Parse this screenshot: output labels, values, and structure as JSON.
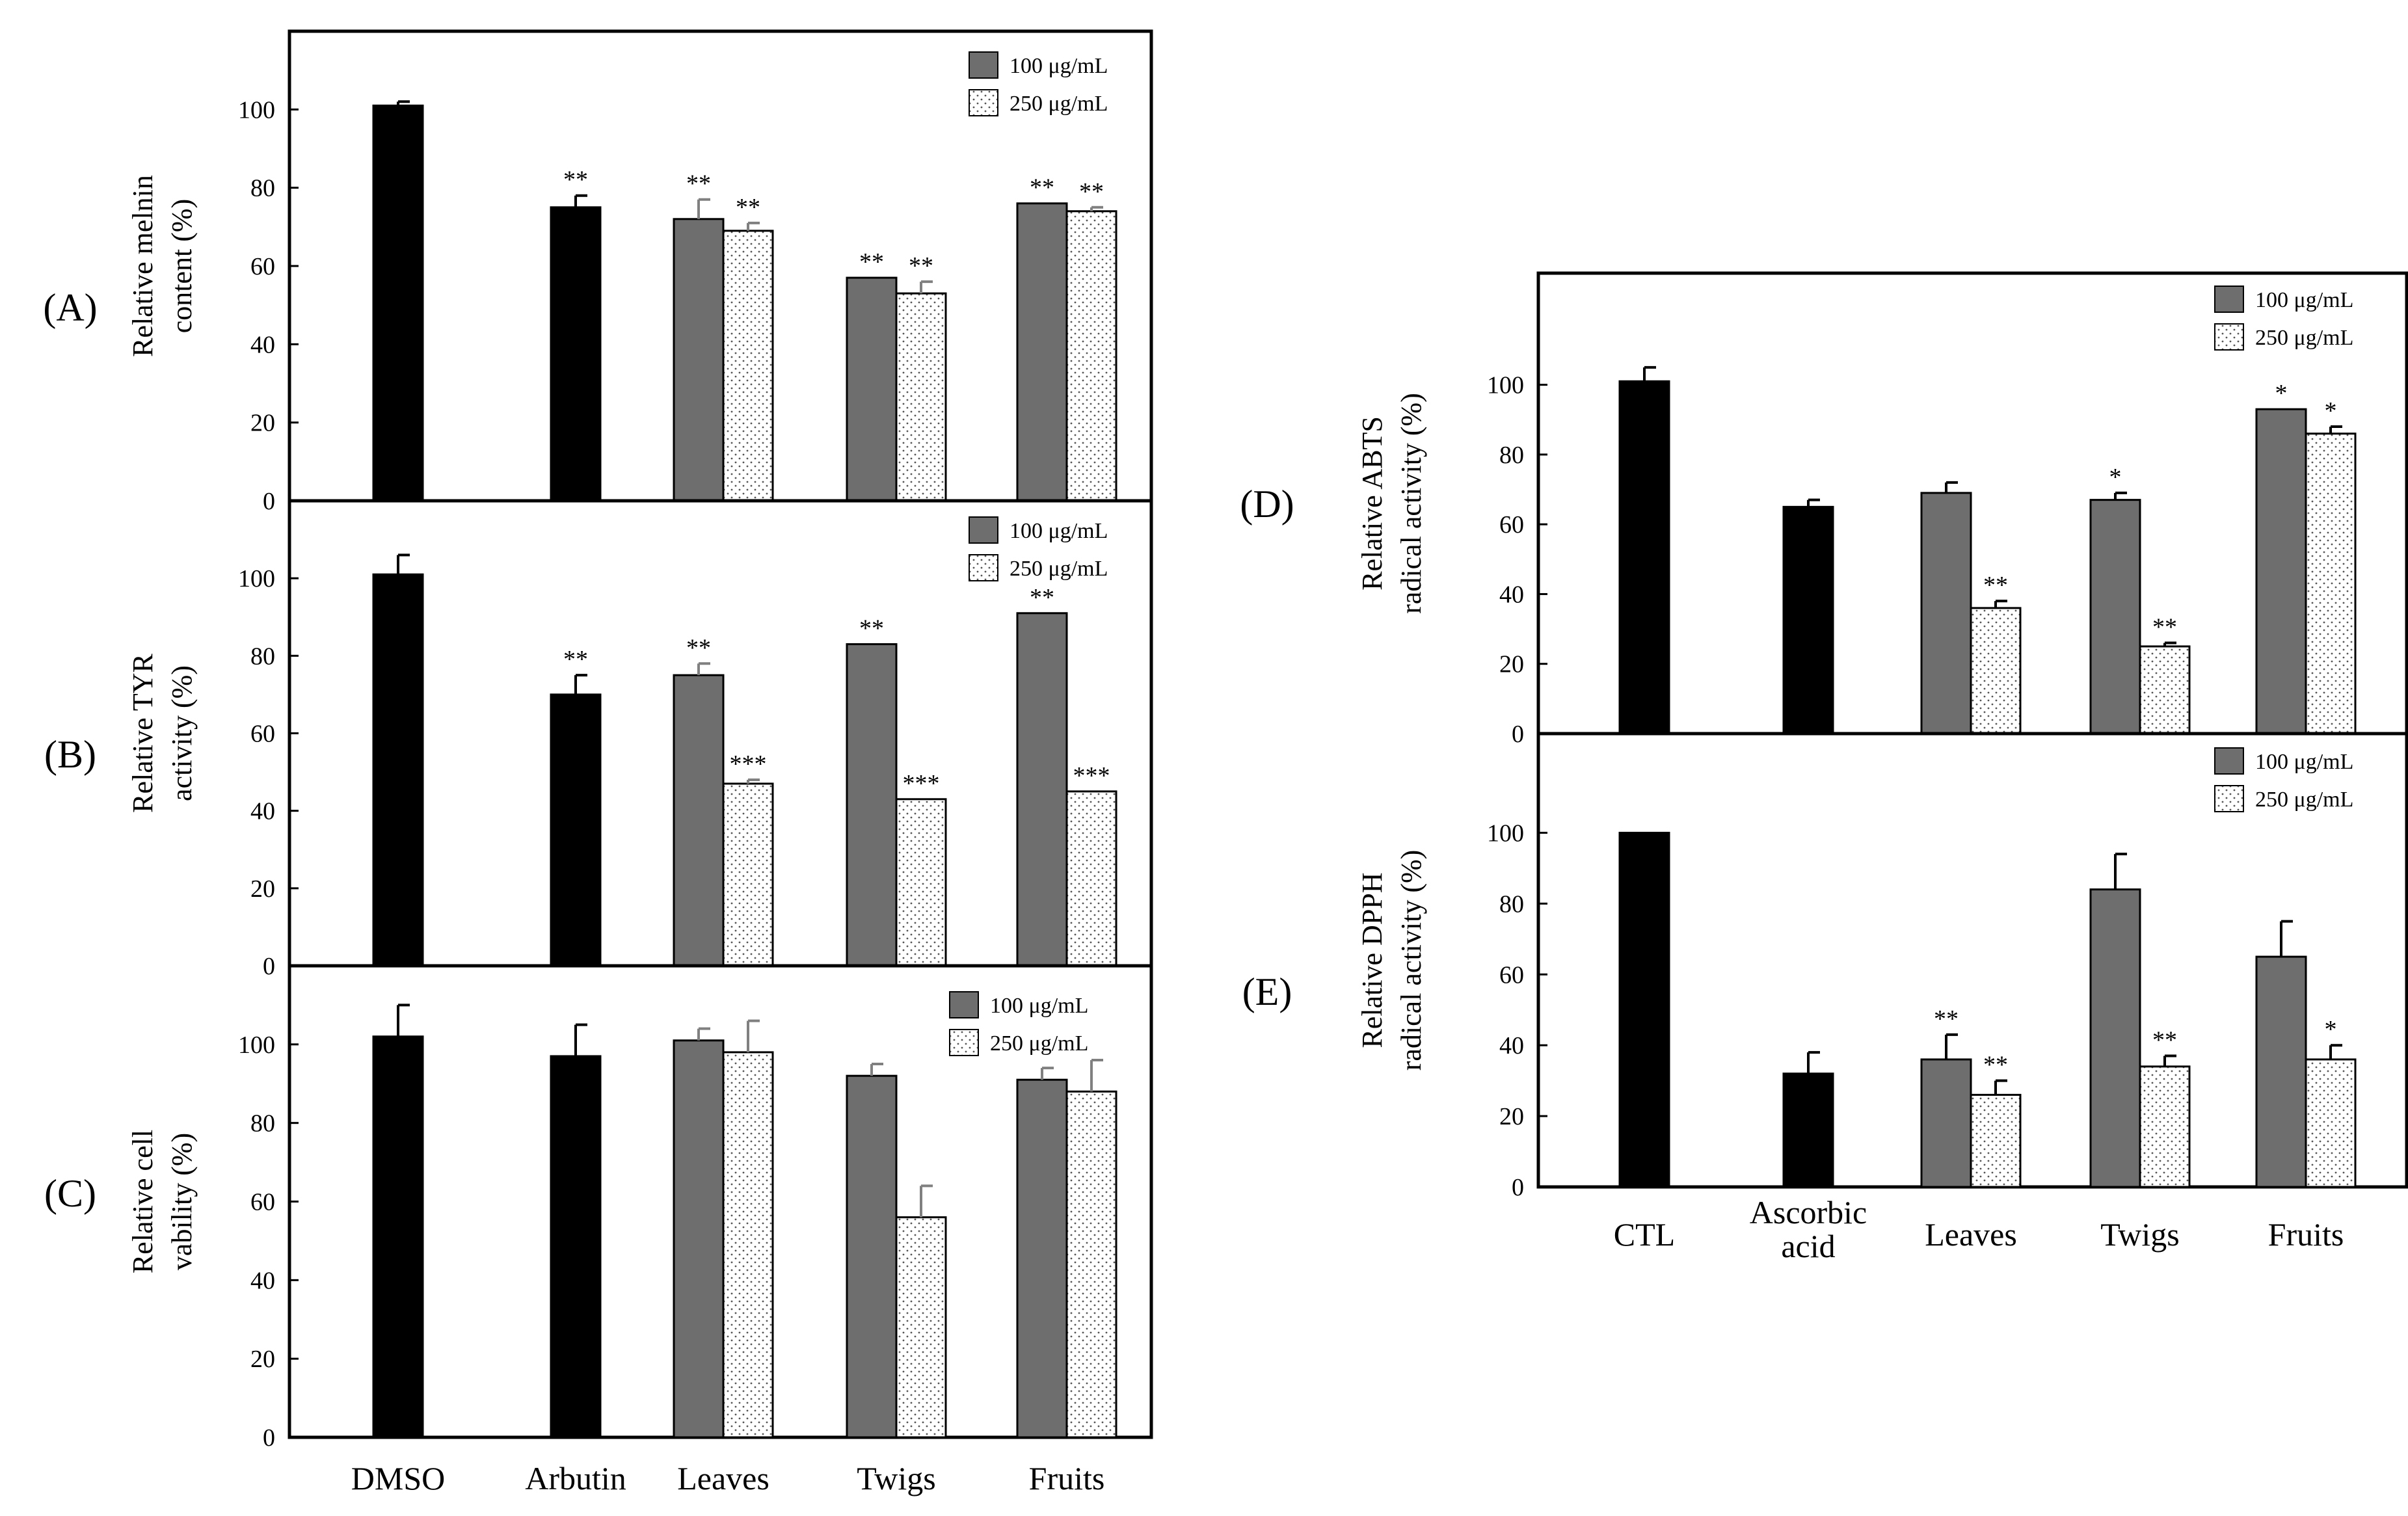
{
  "figure": {
    "colors": {
      "control": "#000000",
      "dose1": "#6e6e6e",
      "dose2": "#ffffff",
      "error": "#808080"
    }
  },
  "chart_data": [
    {
      "type": "bar",
      "panel": "(A)",
      "ylabel_lines": [
        "Relative  melnin",
        "content  (%)"
      ],
      "ylim": [
        0,
        120
      ],
      "yticks": [
        0,
        20,
        40,
        60,
        80,
        100
      ],
      "categories": [
        "DMSO",
        "Arbutin",
        "Leaves",
        "Twigs",
        "Fruits"
      ],
      "legend": [
        "100 μg/mL",
        "250 μg/mL"
      ],
      "series": [
        {
          "name": "control",
          "values": [
            101,
            75,
            null,
            null,
            null
          ],
          "errors": [
            1,
            3,
            null,
            null,
            null
          ],
          "stars": [
            "",
            "**",
            "",
            "",
            ""
          ]
        },
        {
          "name": "100 μg/mL",
          "values": [
            null,
            null,
            72,
            57,
            76
          ],
          "errors": [
            null,
            null,
            5,
            0,
            0
          ],
          "stars": [
            "",
            "",
            "**",
            "**",
            "**"
          ]
        },
        {
          "name": "250 μg/mL",
          "values": [
            null,
            null,
            69,
            53,
            74
          ],
          "errors": [
            null,
            null,
            2,
            3,
            1
          ],
          "stars": [
            "",
            "",
            "**",
            "**",
            "**"
          ]
        }
      ]
    },
    {
      "type": "bar",
      "panel": "(B)",
      "ylabel_lines": [
        "Relative  TYR",
        "activity  (%)"
      ],
      "ylim": [
        0,
        120
      ],
      "yticks": [
        0,
        20,
        40,
        60,
        80,
        100
      ],
      "categories": [
        "DMSO",
        "Arbutin",
        "Leaves",
        "Twigs",
        "Fruits"
      ],
      "legend": [
        "100 μg/mL",
        "250 μg/mL"
      ],
      "series": [
        {
          "name": "control",
          "values": [
            101,
            70,
            null,
            null,
            null
          ],
          "errors": [
            5,
            5,
            null,
            null,
            null
          ],
          "stars": [
            "",
            "**",
            "",
            "",
            ""
          ]
        },
        {
          "name": "100 μg/mL",
          "values": [
            null,
            null,
            75,
            83,
            91
          ],
          "errors": [
            null,
            null,
            3,
            0,
            0
          ],
          "stars": [
            "",
            "",
            "**",
            "**",
            "**"
          ]
        },
        {
          "name": "250 μg/mL",
          "values": [
            null,
            null,
            47,
            43,
            45
          ],
          "errors": [
            null,
            null,
            1,
            0,
            0
          ],
          "stars": [
            "",
            "",
            "***",
            "***",
            "***"
          ]
        }
      ]
    },
    {
      "type": "bar",
      "panel": "(C)",
      "ylabel_lines": [
        "Relative  cell",
        "vability  (%)"
      ],
      "ylim": [
        0,
        120
      ],
      "yticks": [
        0,
        20,
        40,
        60,
        80,
        100
      ],
      "categories": [
        "DMSO",
        "Arbutin",
        "Leaves",
        "Twigs",
        "Fruits"
      ],
      "legend": [
        "100 μg/mL",
        "250 μg/mL"
      ],
      "series": [
        {
          "name": "control",
          "values": [
            102,
            97,
            null,
            null,
            null
          ],
          "errors": [
            8,
            8,
            null,
            null,
            null
          ],
          "stars": [
            "",
            "",
            "",
            "",
            ""
          ]
        },
        {
          "name": "100 μg/mL",
          "values": [
            null,
            null,
            101,
            92,
            91
          ],
          "errors": [
            null,
            null,
            3,
            3,
            3
          ],
          "stars": [
            "",
            "",
            "",
            "",
            ""
          ]
        },
        {
          "name": "250 μg/mL",
          "values": [
            null,
            null,
            98,
            56,
            88
          ],
          "errors": [
            null,
            null,
            8,
            8,
            8
          ],
          "stars": [
            "",
            "",
            "",
            "",
            ""
          ]
        }
      ]
    },
    {
      "type": "bar",
      "panel": "(D)",
      "ylabel_lines": [
        "Relative  ABTS",
        "radical activity  (%)"
      ],
      "ylim": [
        0,
        132
      ],
      "yticks": [
        0,
        20,
        40,
        60,
        80,
        100
      ],
      "categories": [
        "CTL",
        "Ascorbic acid",
        "Leaves",
        "Twigs",
        "Fruits"
      ],
      "legend": [
        "100 μg/mL",
        "250 μg/mL"
      ],
      "series": [
        {
          "name": "control",
          "values": [
            101,
            65,
            null,
            null,
            null
          ],
          "errors": [
            4,
            2,
            null,
            null,
            null
          ],
          "stars": [
            "",
            "",
            "",
            "",
            ""
          ]
        },
        {
          "name": "100 μg/mL",
          "values": [
            null,
            null,
            69,
            67,
            93
          ],
          "errors": [
            null,
            null,
            3,
            2,
            0
          ],
          "stars": [
            "",
            "",
            "",
            "*",
            "*"
          ]
        },
        {
          "name": "250 μg/mL",
          "values": [
            null,
            null,
            36,
            25,
            86
          ],
          "errors": [
            null,
            null,
            2,
            1,
            2
          ],
          "stars": [
            "",
            "",
            "**",
            "**",
            "*"
          ]
        }
      ]
    },
    {
      "type": "bar",
      "panel": "(E)",
      "ylabel_lines": [
        "Relative  DPPH",
        "radical activity  (%)"
      ],
      "ylim": [
        0,
        128
      ],
      "yticks": [
        0,
        20,
        40,
        60,
        80,
        100
      ],
      "categories": [
        "CTL",
        "Ascorbic acid",
        "Leaves",
        "Twigs",
        "Fruits"
      ],
      "legend": [
        "100 μg/mL",
        "250 μg/mL"
      ],
      "series": [
        {
          "name": "control",
          "values": [
            100,
            32,
            null,
            null,
            null
          ],
          "errors": [
            0,
            6,
            null,
            null,
            null
          ],
          "stars": [
            "",
            "",
            "",
            "",
            ""
          ]
        },
        {
          "name": "100 μg/mL",
          "values": [
            null,
            null,
            36,
            84,
            65
          ],
          "errors": [
            null,
            null,
            7,
            10,
            10
          ],
          "stars": [
            "",
            "",
            "**",
            "",
            ""
          ]
        },
        {
          "name": "250 μg/mL",
          "values": [
            null,
            null,
            26,
            34,
            36
          ],
          "errors": [
            null,
            null,
            4,
            3,
            4
          ],
          "stars": [
            "",
            "",
            "**",
            "**",
            "*"
          ]
        }
      ]
    }
  ]
}
